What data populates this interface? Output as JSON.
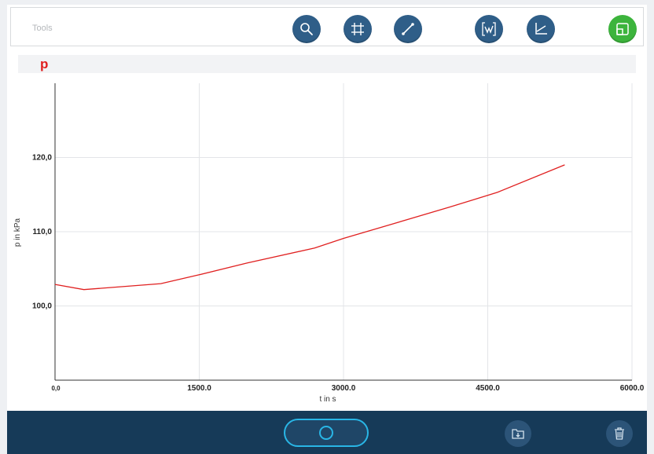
{
  "toolbar": {
    "label": "Tools",
    "buttons": [
      {
        "name": "zoom-button",
        "icon": "magnifier-icon"
      },
      {
        "name": "crop-button",
        "icon": "crop-frame-icon"
      },
      {
        "name": "line-tool-button",
        "icon": "line-segment-icon"
      },
      {
        "name": "fit-curve-button",
        "icon": "curve-bracket-icon"
      },
      {
        "name": "axes-button",
        "icon": "axes-icon"
      },
      {
        "name": "fullscreen-button",
        "icon": "window-expand-icon",
        "color": "#3cb43c"
      }
    ]
  },
  "panel": {
    "title": "p",
    "title_color": "#e02020"
  },
  "chart_data": {
    "type": "line",
    "title": "p",
    "xlabel": "t in s",
    "ylabel": "p in kPa",
    "xlim": [
      0,
      6000
    ],
    "ylim": [
      90,
      130
    ],
    "x_ticks": [
      "0,0",
      "1500.0",
      "3000.0",
      "4500.0",
      "6000.0"
    ],
    "x_tick_values": [
      0,
      1500,
      3000,
      4500,
      6000
    ],
    "y_ticks": [
      "100,0",
      "110,0",
      "120,0"
    ],
    "y_tick_values": [
      100,
      110,
      120
    ],
    "grid": true,
    "line_color": "#e02020",
    "series": [
      {
        "x": [
          0,
          300,
          1100,
          1500,
          2000,
          2700,
          3000,
          3500,
          4100,
          4600,
          5300
        ],
        "values": [
          102.9,
          102.2,
          103.0,
          104.2,
          105.8,
          107.8,
          109.1,
          111.0,
          113.3,
          115.3,
          119.0
        ]
      }
    ]
  },
  "bottombar": {
    "record_button": "record-icon",
    "export_icon": "folder-export-icon",
    "delete_icon": "trash-icon"
  }
}
